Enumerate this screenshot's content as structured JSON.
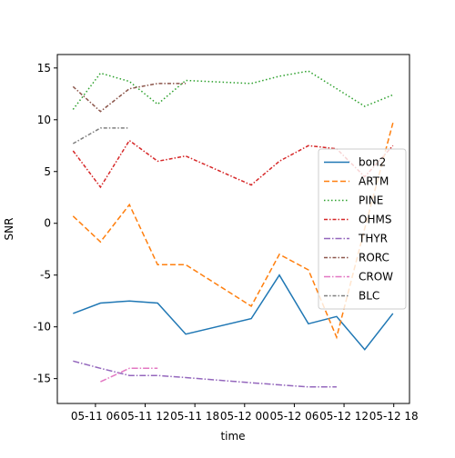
{
  "chart_data": {
    "type": "line",
    "xlabel": "time",
    "ylabel": "SNR",
    "x": [
      3.3,
      6.6,
      10.1,
      13.5,
      16.9,
      24.8,
      28.2,
      31.7,
      35.1,
      38.5,
      41.9
    ],
    "xlim": [
      1.4,
      43.9
    ],
    "xticks": [
      {
        "value": 6,
        "label": "05-11 06"
      },
      {
        "value": 12,
        "label": "05-11 12"
      },
      {
        "value": 18,
        "label": "05-11 18"
      },
      {
        "value": 24,
        "label": "05-12 00"
      },
      {
        "value": 30,
        "label": "05-12 06"
      },
      {
        "value": 36,
        "label": "05-12 12"
      },
      {
        "value": 42,
        "label": "05-12 18"
      }
    ],
    "ylim": [
      -17.4,
      16.3
    ],
    "yticks": [
      -15,
      -10,
      -5,
      0,
      5,
      10,
      15
    ],
    "legend": "center right",
    "series": [
      {
        "name": "bon2",
        "color": "#1f77b4",
        "values": [
          -8.7,
          -7.7,
          -7.5,
          -7.7,
          -10.7,
          -9.2,
          -5,
          -9.7,
          -9,
          -12.2,
          -8.7
        ]
      },
      {
        "name": "ARTM",
        "color": "#ff7f0e",
        "values": [
          0.7,
          -1.8,
          1.8,
          -4,
          -4,
          -8,
          -3,
          -4.5,
          -11,
          -0.5,
          9.7
        ]
      },
      {
        "name": "PINE",
        "color": "#2ca02c",
        "values": [
          11,
          14.5,
          13.7,
          11.5,
          13.8,
          13.5,
          14.2,
          14.7,
          13,
          11.3,
          12.4
        ]
      },
      {
        "name": "OHMS",
        "color": "#d62728",
        "values": [
          7,
          3.5,
          8,
          6,
          6.5,
          3.7,
          6,
          7.5,
          7.2,
          4.5,
          7.5
        ]
      },
      {
        "name": "THYR",
        "color": "#9467bd",
        "values": [
          -13.3,
          -14,
          -14.7,
          -14.7,
          -14.9,
          -15.4,
          -15.6,
          -15.8,
          -15.8,
          null,
          null
        ]
      },
      {
        "name": "RORC",
        "color": "#8c564b",
        "values": [
          13.2,
          10.8,
          13,
          13.5,
          13.5,
          null,
          null,
          null,
          null,
          null,
          null
        ]
      },
      {
        "name": "CROW",
        "color": "#e377c2",
        "values": [
          null,
          -15.3,
          -14,
          -14,
          null,
          null,
          null,
          null,
          null,
          null,
          null
        ]
      },
      {
        "name": "BLC",
        "color": "#7f7f7f",
        "values": [
          7.7,
          9.2,
          9.2,
          null,
          null,
          null,
          null,
          null,
          null,
          null,
          null
        ]
      }
    ]
  }
}
